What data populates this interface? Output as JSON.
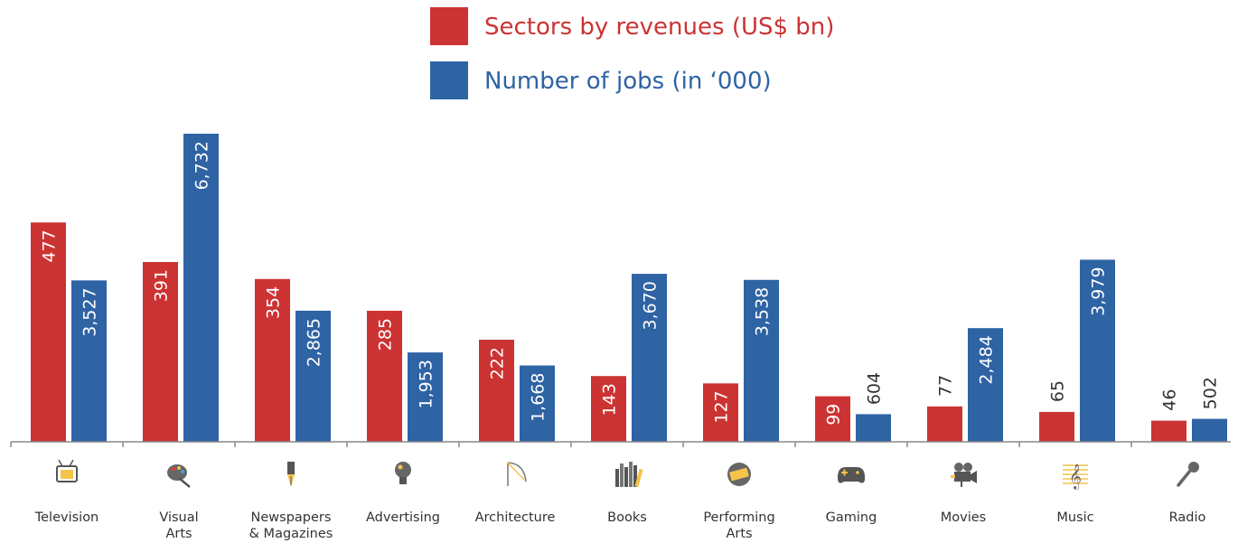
{
  "chart_data": {
    "type": "bar",
    "title": "",
    "xlabel": "",
    "ylabel": "",
    "categories": [
      {
        "lines": [
          "Television"
        ],
        "icon": "television-icon"
      },
      {
        "lines": [
          "Visual",
          "Arts"
        ],
        "icon": "palette-icon"
      },
      {
        "lines": [
          "Newspapers",
          "& Magazines"
        ],
        "icon": "fountain-pen-icon"
      },
      {
        "lines": [
          "Advertising"
        ],
        "icon": "lightbulb-icon"
      },
      {
        "lines": [
          "Architecture"
        ],
        "icon": "drafting-compass-icon"
      },
      {
        "lines": [
          "Books"
        ],
        "icon": "books-icon"
      },
      {
        "lines": [
          "Performing",
          "Arts"
        ],
        "icon": "ticket-icon"
      },
      {
        "lines": [
          "Gaming"
        ],
        "icon": "gamepad-icon"
      },
      {
        "lines": [
          "Movies"
        ],
        "icon": "film-camera-icon"
      },
      {
        "lines": [
          "Music"
        ],
        "icon": "treble-clef-icon"
      },
      {
        "lines": [
          "Radio"
        ],
        "icon": "microphone-icon"
      }
    ],
    "series": [
      {
        "name": "Sectors by revenues (US$ bn)",
        "color": "#cc3333",
        "values": [
          477,
          391,
          354,
          285,
          222,
          143,
          127,
          99,
          77,
          65,
          46
        ],
        "labels": [
          "477",
          "391",
          "354",
          "285",
          "222",
          "143",
          "127",
          "99",
          "77",
          "65",
          "46"
        ],
        "ylim": [
          0,
          670
        ]
      },
      {
        "name": "Number of jobs (in ‘000)",
        "color": "#2e63a4",
        "values": [
          3527,
          6732,
          2865,
          1953,
          1668,
          3670,
          3538,
          604,
          2484,
          3979,
          502
        ],
        "labels": [
          "3,527",
          "6,732",
          "2,865",
          "1,953",
          "1,668",
          "3,670",
          "3,538",
          "604",
          "2,484",
          "3,979",
          "502"
        ],
        "ylim": [
          0,
          6732
        ]
      }
    ],
    "legend": "top-center",
    "grid": false
  }
}
